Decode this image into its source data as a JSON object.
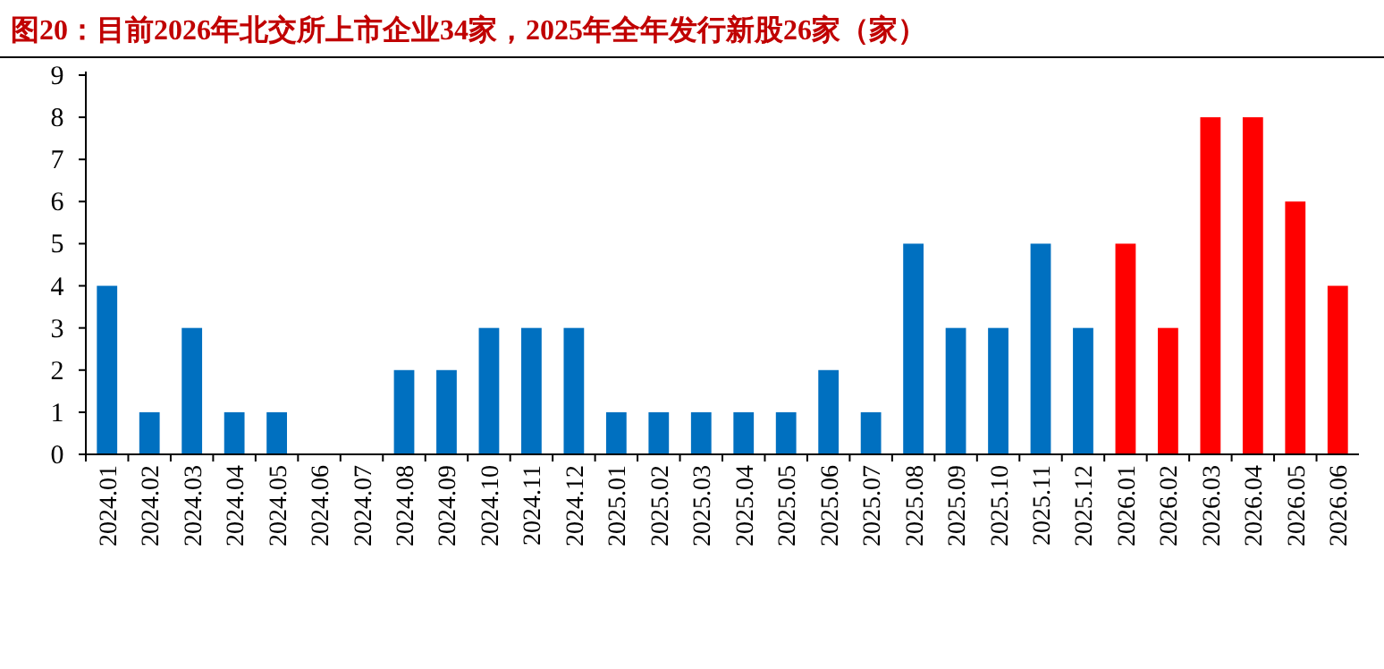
{
  "chart_data": {
    "type": "bar",
    "title": "图20：目前2026年北交所上市企业34家，2025年全年发行新股26家（家）",
    "categories": [
      "2024.01",
      "2024.02",
      "2024.03",
      "2024.04",
      "2024.05",
      "2024.06",
      "2024.07",
      "2024.08",
      "2024.09",
      "2024.10",
      "2024.11",
      "2024.12",
      "2025.01",
      "2025.02",
      "2025.03",
      "2025.04",
      "2025.05",
      "2025.06",
      "2025.07",
      "2025.08",
      "2025.09",
      "2025.10",
      "2025.11",
      "2025.12",
      "2026.01",
      "2026.02",
      "2026.03",
      "2026.04",
      "2026.05",
      "2026.06"
    ],
    "values": [
      4,
      1,
      3,
      1,
      1,
      0,
      0,
      2,
      2,
      3,
      3,
      3,
      1,
      1,
      1,
      1,
      1,
      2,
      1,
      5,
      3,
      3,
      5,
      3,
      5,
      3,
      8,
      8,
      6,
      4
    ],
    "colors": [
      "#0070c0",
      "#0070c0",
      "#0070c0",
      "#0070c0",
      "#0070c0",
      "#0070c0",
      "#0070c0",
      "#0070c0",
      "#0070c0",
      "#0070c0",
      "#0070c0",
      "#0070c0",
      "#0070c0",
      "#0070c0",
      "#0070c0",
      "#0070c0",
      "#0070c0",
      "#0070c0",
      "#0070c0",
      "#0070c0",
      "#0070c0",
      "#0070c0",
      "#0070c0",
      "#0070c0",
      "#ff0000",
      "#ff0000",
      "#ff0000",
      "#ff0000",
      "#ff0000",
      "#ff0000"
    ],
    "ylim": [
      0,
      9
    ],
    "yticks": [
      0,
      1,
      2,
      3,
      4,
      5,
      6,
      7,
      8,
      9
    ]
  }
}
